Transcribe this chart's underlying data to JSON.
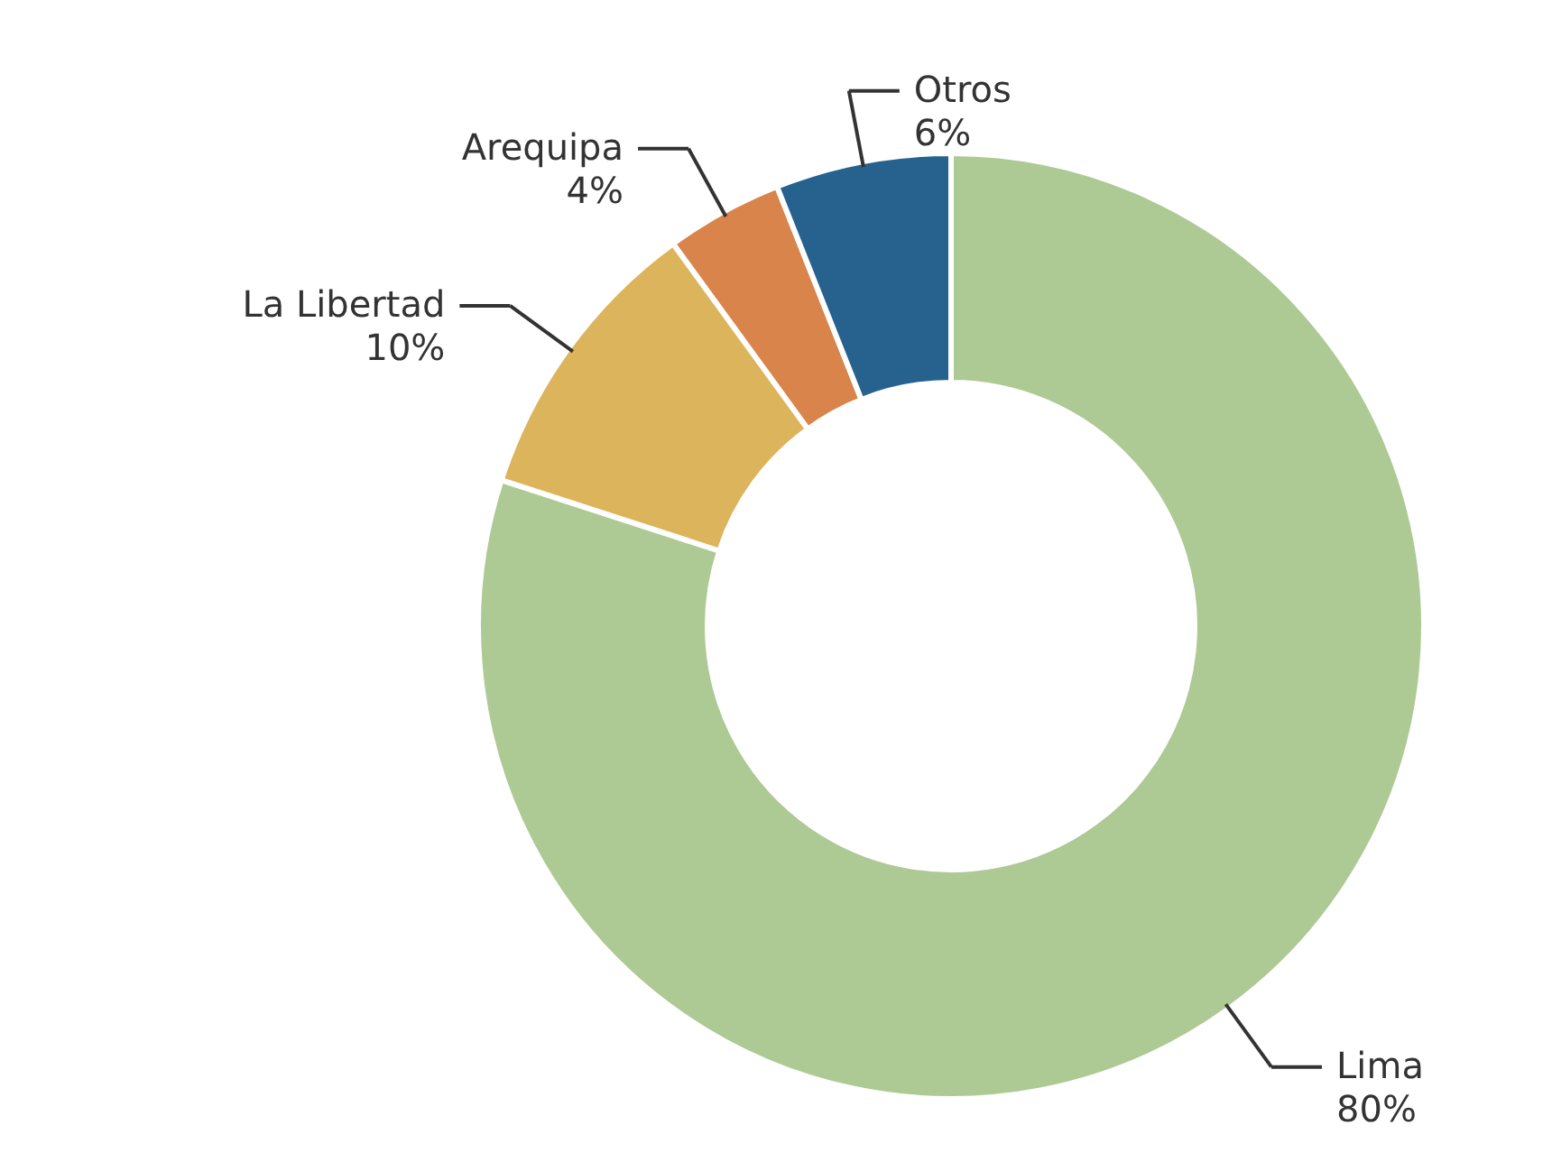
{
  "chart_data": {
    "type": "donut",
    "categories": [
      "Lima",
      "La Libertad",
      "Arequipa",
      "Otros"
    ],
    "values": [
      80,
      10,
      4,
      6
    ],
    "value_labels": [
      "80%",
      "10%",
      "4%",
      "6%"
    ],
    "colors": [
      "#adc994",
      "#dcb45c",
      "#d9844a",
      "#27628e"
    ]
  }
}
